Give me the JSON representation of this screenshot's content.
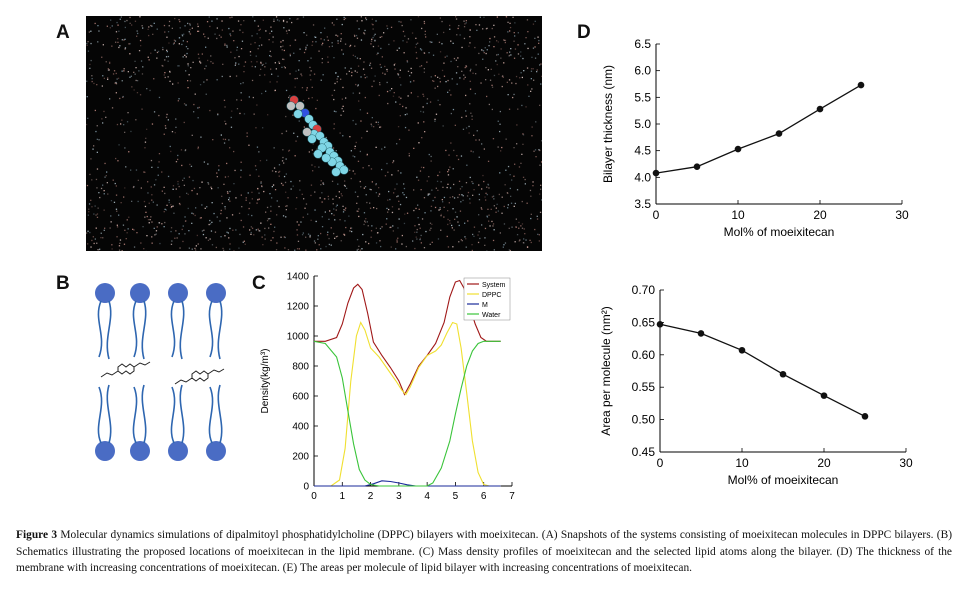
{
  "panels": {
    "a": "A",
    "b": "B",
    "c": "C",
    "d": "D"
  },
  "caption": {
    "label": "Figure 3",
    "text": "Molecular dynamics simulations of dipalmitoyl phosphatidylcholine (DPPC) bilayers with moeixitecan. (A) Snapshots of the systems consisting of moeixitecan molecules in DPPC bilayers. (B) Schematics illustrating the proposed locations of moeixitecan in the lipid membrane. (C) Mass density profiles of moeixitecan and the selected lipid atoms along the bilayer. (D) The thickness of the membrane with increasing concentrations of moeixitecan. (E) The areas per molecule of lipid bilayer with increasing concentrations of moeixitecan."
  },
  "colors": {
    "system": "#a01818",
    "dppc": "#f0e030",
    "m": "#1a2a9a",
    "water": "#3ac43a",
    "lipid_head": "#4a6cc4",
    "lipid_tail": "#2e66b0"
  },
  "chart_data": [
    {
      "id": "C",
      "type": "line",
      "xlim": [
        0,
        7
      ],
      "ylim": [
        0,
        1400
      ],
      "xticks": [
        0,
        1,
        2,
        3,
        4,
        5,
        6,
        7
      ],
      "yticks": [
        0,
        200,
        400,
        600,
        800,
        1000,
        1200,
        1400
      ],
      "xlabel": "",
      "ylabel": "Density(kg/m³)",
      "legend_position": "top-right",
      "series": [
        {
          "name": "System",
          "color": "#a01818",
          "x": [
            0,
            0.4,
            0.8,
            1.0,
            1.2,
            1.4,
            1.55,
            1.7,
            1.9,
            2.1,
            2.4,
            2.7,
            3.0,
            3.2,
            3.4,
            3.7,
            4.0,
            4.3,
            4.6,
            4.8,
            5.0,
            5.15,
            5.3,
            5.5,
            5.7,
            5.9,
            6.1,
            6.3,
            6.6
          ],
          "y": [
            965,
            965,
            990,
            1080,
            1220,
            1320,
            1345,
            1310,
            1150,
            960,
            870,
            790,
            700,
            610,
            680,
            800,
            870,
            950,
            1090,
            1260,
            1360,
            1370,
            1320,
            1200,
            1080,
            990,
            965,
            965,
            965
          ]
        },
        {
          "name": "DPPC",
          "color": "#f0e030",
          "x": [
            0,
            0.6,
            0.9,
            1.1,
            1.3,
            1.5,
            1.65,
            1.8,
            2.0,
            2.3,
            2.6,
            2.9,
            3.1,
            3.25,
            3.4,
            3.7,
            4.0,
            4.3,
            4.5,
            4.7,
            4.9,
            5.05,
            5.2,
            5.4,
            5.6,
            5.8,
            6.0,
            6.2,
            6.6
          ],
          "y": [
            0,
            0,
            40,
            250,
            700,
            1000,
            1090,
            1040,
            920,
            860,
            780,
            700,
            640,
            610,
            660,
            790,
            870,
            900,
            940,
            1020,
            1090,
            1080,
            920,
            620,
            300,
            90,
            10,
            0,
            0
          ]
        },
        {
          "name": "M",
          "color": "#1a2a9a",
          "x": [
            0,
            1.8,
            2.1,
            2.4,
            2.7,
            3.0,
            3.3,
            3.6,
            6.6
          ],
          "y": [
            0,
            0,
            15,
            35,
            30,
            20,
            8,
            0,
            0
          ]
        },
        {
          "name": "Water",
          "color": "#3ac43a",
          "x": [
            0,
            0.4,
            0.8,
            1.0,
            1.2,
            1.4,
            1.6,
            1.8,
            2.0,
            2.3,
            2.6,
            4.0,
            4.2,
            4.5,
            4.8,
            5.0,
            5.2,
            5.4,
            5.6,
            5.8,
            6.0,
            6.3,
            6.6
          ],
          "y": [
            965,
            950,
            860,
            720,
            500,
            280,
            110,
            40,
            10,
            0,
            0,
            0,
            20,
            120,
            300,
            480,
            650,
            800,
            900,
            950,
            965,
            965,
            965
          ]
        }
      ]
    },
    {
      "id": "D",
      "type": "line",
      "xlim": [
        0,
        30
      ],
      "ylim": [
        3.5,
        6.5
      ],
      "xticks": [
        0,
        10,
        20,
        30
      ],
      "yticks": [
        3.5,
        4.0,
        4.5,
        5.0,
        5.5,
        6.0,
        6.5
      ],
      "xlabel": "Mol% of moeixitecan",
      "ylabel": "Bilayer thickness (nm)",
      "series": [
        {
          "x": [
            0,
            5,
            10,
            15,
            20,
            25
          ],
          "y": [
            4.08,
            4.2,
            4.53,
            4.82,
            5.28,
            5.73
          ]
        }
      ]
    },
    {
      "id": "E",
      "type": "line",
      "xlim": [
        0,
        30
      ],
      "ylim": [
        0.45,
        0.7
      ],
      "xticks": [
        0,
        10,
        20,
        30
      ],
      "yticks": [
        0.45,
        0.5,
        0.55,
        0.6,
        0.65,
        0.7
      ],
      "xlabel": "Mol% of moeixitecan",
      "ylabel": "Area per molecule (nm²)",
      "series": [
        {
          "x": [
            0,
            5,
            10,
            15,
            20,
            25
          ],
          "y": [
            0.647,
            0.633,
            0.607,
            0.57,
            0.537,
            0.505
          ]
        }
      ]
    }
  ]
}
